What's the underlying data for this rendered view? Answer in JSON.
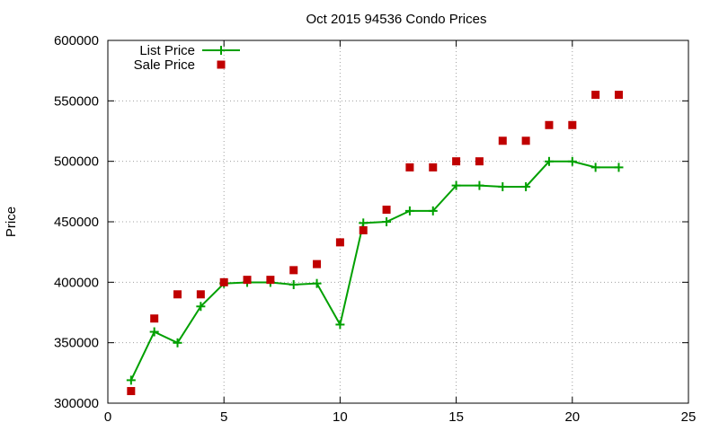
{
  "chart_data": {
    "type": "line",
    "title": "Oct 2015 94536 Condo Prices",
    "xlabel": "",
    "ylabel": "Price",
    "xlim": [
      0,
      25
    ],
    "ylim": [
      300000,
      600000
    ],
    "xticks": [
      0,
      5,
      10,
      15,
      20,
      25
    ],
    "yticks": [
      300000,
      350000,
      400000,
      450000,
      500000,
      550000,
      600000
    ],
    "grid": true,
    "legend_position": "top-left",
    "series": [
      {
        "name": "List Price",
        "style": "line-plus",
        "color": "#00a000",
        "x": [
          1,
          2,
          3,
          4,
          5,
          6,
          7,
          8,
          9,
          10,
          11,
          12,
          13,
          14,
          15,
          16,
          17,
          18,
          19,
          20,
          21,
          22
        ],
        "y": [
          319000,
          359000,
          349900,
          380000,
          399000,
          399900,
          399900,
          398000,
          399000,
          365000,
          449000,
          450000,
          459000,
          459000,
          480000,
          480000,
          479000,
          479000,
          499900,
          499900,
          495000,
          495000
        ]
      },
      {
        "name": "Sale Price",
        "style": "square",
        "color": "#c00000",
        "x": [
          1,
          2,
          3,
          4,
          5,
          6,
          7,
          8,
          9,
          10,
          11,
          12,
          13,
          14,
          15,
          16,
          17,
          18,
          19,
          20,
          21,
          22
        ],
        "y": [
          310000,
          370000,
          390000,
          390000,
          400000,
          402000,
          402000,
          410000,
          415000,
          433000,
          443000,
          460000,
          495000,
          495000,
          500000,
          500000,
          517000,
          517000,
          530000,
          530000,
          555000,
          555000
        ]
      }
    ]
  }
}
